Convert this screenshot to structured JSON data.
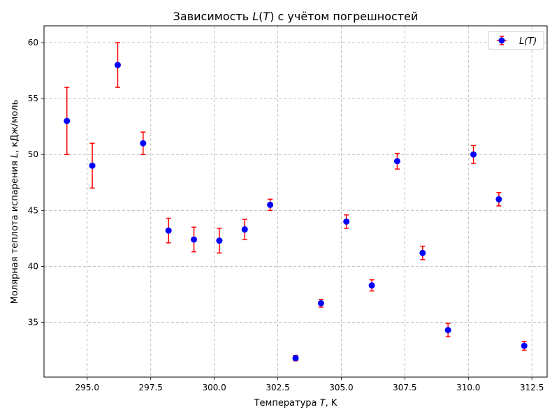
{
  "chart_data": {
    "type": "scatter",
    "title": "Зависимость L(T) с учётом погрешностей",
    "xlabel": "Температура T, K",
    "ylabel": "Молярная теплота испарения L, кДж/моль",
    "xlim": [
      293.3,
      313.1
    ],
    "ylim": [
      30.1,
      61.5
    ],
    "xticks": [
      295.0,
      297.5,
      300.0,
      302.5,
      305.0,
      307.5,
      310.0,
      312.5
    ],
    "xtick_labels": [
      "295.0",
      "297.5",
      "300.0",
      "302.5",
      "305.0",
      "307.5",
      "310.0",
      "312.5"
    ],
    "yticks": [
      35,
      40,
      45,
      50,
      55,
      60
    ],
    "ytick_labels": [
      "35",
      "40",
      "45",
      "50",
      "55",
      "60"
    ],
    "grid": true,
    "legend_position": "top-right",
    "series": [
      {
        "name": "L(T)",
        "marker_color": "#0000ff",
        "errorbar_color": "#ff0000",
        "points": [
          {
            "x": 294.2,
            "y": 53.0,
            "yerr_low": 3.0,
            "yerr_high": 3.0
          },
          {
            "x": 295.2,
            "y": 49.0,
            "yerr_low": 2.0,
            "yerr_high": 2.0
          },
          {
            "x": 296.2,
            "y": 58.0,
            "yerr_low": 2.0,
            "yerr_high": 2.0
          },
          {
            "x": 297.2,
            "y": 51.0,
            "yerr_low": 1.0,
            "yerr_high": 1.0
          },
          {
            "x": 298.2,
            "y": 43.2,
            "yerr_low": 1.1,
            "yerr_high": 1.1
          },
          {
            "x": 299.2,
            "y": 42.4,
            "yerr_low": 1.1,
            "yerr_high": 1.1
          },
          {
            "x": 300.2,
            "y": 42.3,
            "yerr_low": 1.1,
            "yerr_high": 1.1
          },
          {
            "x": 301.2,
            "y": 43.3,
            "yerr_low": 0.9,
            "yerr_high": 0.9
          },
          {
            "x": 302.2,
            "y": 45.5,
            "yerr_low": 0.5,
            "yerr_high": 0.5
          },
          {
            "x": 303.2,
            "y": 31.8,
            "yerr_low": 0.25,
            "yerr_high": 0.25
          },
          {
            "x": 304.2,
            "y": 36.7,
            "yerr_low": 0.35,
            "yerr_high": 0.35
          },
          {
            "x": 305.2,
            "y": 44.0,
            "yerr_low": 0.6,
            "yerr_high": 0.6
          },
          {
            "x": 306.2,
            "y": 38.3,
            "yerr_low": 0.5,
            "yerr_high": 0.5
          },
          {
            "x": 307.2,
            "y": 49.4,
            "yerr_low": 0.7,
            "yerr_high": 0.7
          },
          {
            "x": 308.2,
            "y": 41.2,
            "yerr_low": 0.6,
            "yerr_high": 0.6
          },
          {
            "x": 309.2,
            "y": 34.3,
            "yerr_low": 0.6,
            "yerr_high": 0.6
          },
          {
            "x": 310.2,
            "y": 50.0,
            "yerr_low": 0.8,
            "yerr_high": 0.8
          },
          {
            "x": 311.2,
            "y": 46.0,
            "yerr_low": 0.6,
            "yerr_high": 0.6
          },
          {
            "x": 312.2,
            "y": 32.9,
            "yerr_low": 0.4,
            "yerr_high": 0.4
          }
        ]
      }
    ]
  }
}
